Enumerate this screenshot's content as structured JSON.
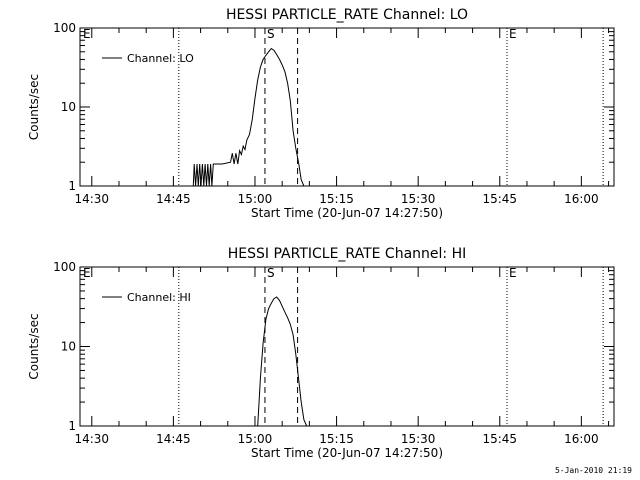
{
  "chart_data": [
    {
      "type": "line",
      "title": "HESSI PARTICLE_RATE Channel: LO",
      "xlabel": "Start Time (20-Jun-07 14:27:50)",
      "ylabel": "Counts/sec",
      "yscale": "log",
      "ylim": [
        1,
        100
      ],
      "xlim": [
        "14:27:50",
        "16:06:00"
      ],
      "x_ticks": [
        "14:30",
        "14:45",
        "15:00",
        "15:15",
        "15:30",
        "15:45",
        "16:00"
      ],
      "y_ticks": [
        "1",
        "10",
        "100"
      ],
      "grid": false,
      "legend": "top-left",
      "series": [
        {
          "name": "Channel: LO",
          "x": [
            "14:44:00",
            "14:48:40",
            "14:48:50",
            "14:49:05",
            "14:49:20",
            "14:49:35",
            "14:49:50",
            "14:50:05",
            "14:50:20",
            "14:50:35",
            "14:50:50",
            "14:51:05",
            "14:51:20",
            "14:51:35",
            "14:51:50",
            "14:52:05",
            "14:52:20",
            "14:53:00",
            "14:53:30",
            "14:54:00",
            "14:55:30",
            "14:55:50",
            "14:56:10",
            "14:56:30",
            "14:56:50",
            "14:57:10",
            "14:57:30",
            "14:57:50",
            "14:58:10",
            "14:58:30",
            "14:59:00",
            "14:59:30",
            "15:00:00",
            "15:00:30",
            "15:01:00",
            "15:01:30",
            "15:02:00",
            "15:02:30",
            "15:03:00",
            "15:03:30",
            "15:04:00",
            "15:04:30",
            "15:05:00",
            "15:05:30",
            "15:06:00",
            "15:06:30",
            "15:07:00",
            "15:07:30",
            "15:08:00",
            "15:08:30",
            "15:09:00",
            "15:09:20",
            "15:09:40"
          ],
          "values": [
            1,
            1,
            1.9,
            1,
            1.9,
            1,
            1.9,
            1,
            1.9,
            1,
            1.9,
            1,
            1.9,
            1,
            1.9,
            1,
            1.9,
            1.9,
            1.9,
            1.9,
            2,
            2.6,
            1.9,
            2.6,
            1.9,
            2.8,
            2.5,
            3.2,
            2.9,
            3.8,
            4.5,
            7,
            13,
            22,
            32,
            40,
            45,
            50,
            55,
            52,
            46,
            40,
            34,
            28,
            20,
            12,
            5,
            3,
            2,
            1.2,
            1,
            1,
            1
          ]
        }
      ],
      "markers": [
        {
          "label": "E",
          "time": "14:27:50",
          "style": "dotted"
        },
        {
          "label": "",
          "time": "14:46:00",
          "style": "dotted"
        },
        {
          "label": "S",
          "time": "15:01:50",
          "style": "dashed"
        },
        {
          "label": "",
          "time": "15:07:50",
          "style": "dashed"
        },
        {
          "label": "E",
          "time": "15:46:20",
          "style": "dotted"
        },
        {
          "label": "",
          "time": "16:04:00",
          "style": "dotted"
        }
      ]
    },
    {
      "type": "line",
      "title": "HESSI PARTICLE_RATE Channel: HI",
      "xlabel": "Start Time (20-Jun-07 14:27:50)",
      "ylabel": "Counts/sec",
      "yscale": "log",
      "ylim": [
        1,
        100
      ],
      "xlim": [
        "14:27:50",
        "16:06:00"
      ],
      "x_ticks": [
        "14:30",
        "14:45",
        "15:00",
        "15:15",
        "15:30",
        "15:45",
        "16:00"
      ],
      "y_ticks": [
        "1",
        "10",
        "100"
      ],
      "grid": false,
      "legend": "top-left",
      "series": [
        {
          "name": "Channel: HI",
          "x": [
            "15:00:30",
            "15:01:00",
            "15:01:30",
            "15:02:00",
            "15:02:30",
            "15:03:00",
            "15:03:30",
            "15:04:00",
            "15:04:30",
            "15:05:00",
            "15:05:30",
            "15:06:00",
            "15:06:30",
            "15:07:00",
            "15:07:30",
            "15:08:00",
            "15:08:30",
            "15:09:00",
            "15:09:30"
          ],
          "values": [
            1,
            4,
            11,
            22,
            30,
            35,
            40,
            42,
            38,
            32,
            27,
            23,
            19,
            14,
            8,
            4,
            2,
            1.2,
            1
          ]
        }
      ],
      "markers": [
        {
          "label": "E",
          "time": "14:27:50",
          "style": "dotted"
        },
        {
          "label": "",
          "time": "14:46:00",
          "style": "dotted"
        },
        {
          "label": "S",
          "time": "15:01:50",
          "style": "dashed"
        },
        {
          "label": "",
          "time": "15:07:50",
          "style": "dashed"
        },
        {
          "label": "E",
          "time": "15:46:20",
          "style": "dotted"
        },
        {
          "label": "",
          "time": "16:04:00",
          "style": "dotted"
        }
      ]
    }
  ],
  "footer": {
    "stamp": "5-Jan-2010 21:19"
  }
}
